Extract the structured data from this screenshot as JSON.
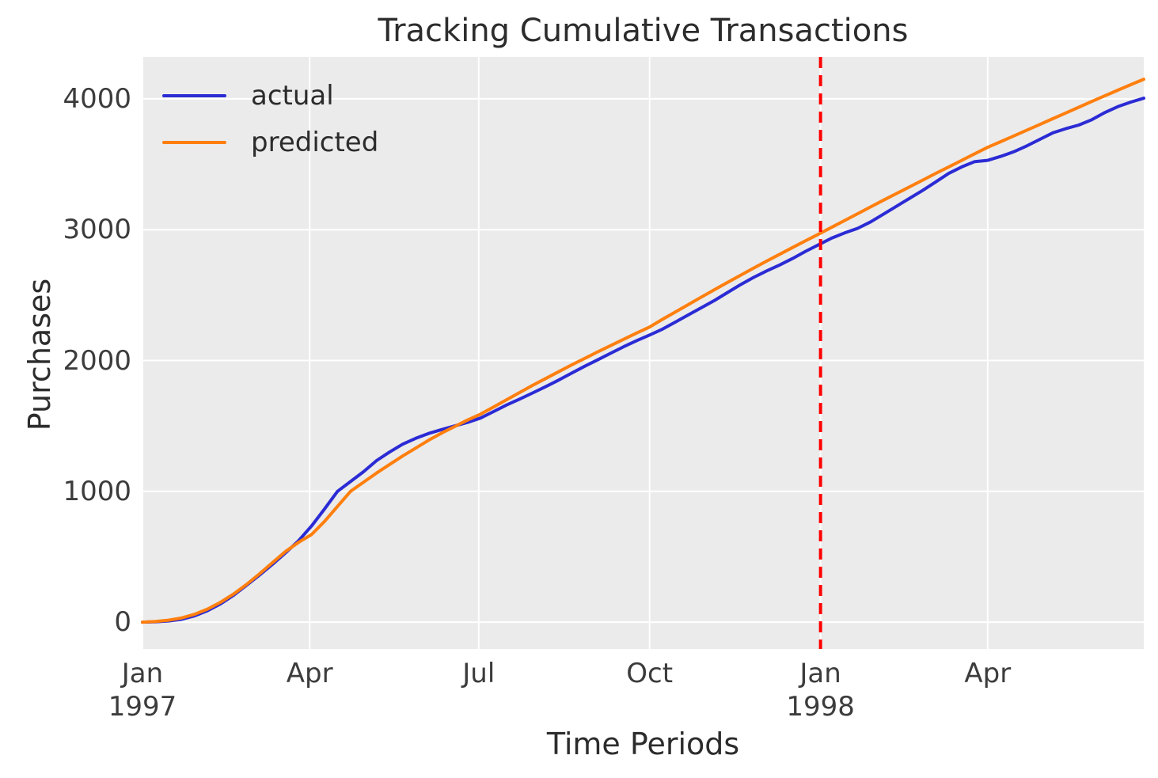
{
  "title": "Tracking Cumulative Transactions",
  "axes": {
    "xlabel": "Time Periods",
    "ylabel": "Purchases"
  },
  "legend": {
    "position": "upper left",
    "items": [
      {
        "label": "actual",
        "color": "#2b2bd5"
      },
      {
        "label": "predicted",
        "color": "#ff7f0e"
      }
    ]
  },
  "colors": {
    "figure_bg": "#ffffff",
    "plot_bg": "#ebebeb",
    "grid": "#ffffff",
    "actual": "#2b2bd5",
    "predicted": "#ff7f0e",
    "vline": "#ff0000",
    "heading_text": "#2c2c2c",
    "tick_text": "#3c3c3c"
  },
  "chart_data": {
    "type": "line",
    "title": "Tracking Cumulative Transactions",
    "xlabel": "Time Periods",
    "ylabel": "Purchases",
    "x_unit": "weeks since 1997-01-01 (weekly cumulative totals)",
    "x_week_range": [
      0,
      77
    ],
    "ylim": [
      -205,
      4320
    ],
    "grid": true,
    "legend_position": "upper left",
    "yticks": [
      {
        "label": "0",
        "value": 0
      },
      {
        "label": "1000",
        "value": 1000
      },
      {
        "label": "2000",
        "value": 2000
      },
      {
        "label": "3000",
        "value": 3000
      },
      {
        "label": "4000",
        "value": 4000
      }
    ],
    "xticks": [
      {
        "label": "Jan",
        "sublabel": "1997",
        "week": 0
      },
      {
        "label": "Apr",
        "sublabel": "",
        "week": 12.857
      },
      {
        "label": "Jul",
        "sublabel": "",
        "week": 25.857
      },
      {
        "label": "Oct",
        "sublabel": "",
        "week": 39
      },
      {
        "label": "Jan",
        "sublabel": "1998",
        "week": 52.143
      },
      {
        "label": "Apr",
        "sublabel": "",
        "week": 65
      }
    ],
    "vline": {
      "week": 52.143,
      "at_tick": "Jan 1998",
      "color": "#ff0000",
      "style": "dashed"
    },
    "series": [
      {
        "name": "actual",
        "color": "#2b2bd5",
        "values": [
          0,
          3,
          9,
          22,
          48,
          88,
          140,
          205,
          282,
          360,
          442,
          530,
          622,
          735,
          865,
          1000,
          1075,
          1150,
          1235,
          1300,
          1360,
          1405,
          1442,
          1472,
          1500,
          1527,
          1560,
          1610,
          1660,
          1705,
          1752,
          1800,
          1850,
          1903,
          1956,
          2005,
          2055,
          2105,
          2152,
          2195,
          2240,
          2295,
          2350,
          2405,
          2460,
          2520,
          2580,
          2635,
          2685,
          2730,
          2780,
          2835,
          2885,
          2935,
          2975,
          3010,
          3060,
          3120,
          3180,
          3240,
          3300,
          3365,
          3430,
          3480,
          3520,
          3530,
          3560,
          3595,
          3640,
          3690,
          3740,
          3772,
          3800,
          3840,
          3895,
          3940,
          3975,
          4005
        ]
      },
      {
        "name": "predicted",
        "color": "#ff7f0e",
        "values": [
          0,
          5,
          15,
          32,
          60,
          100,
          152,
          215,
          288,
          370,
          455,
          540,
          610,
          670,
          770,
          885,
          1000,
          1070,
          1140,
          1205,
          1270,
          1330,
          1390,
          1445,
          1495,
          1545,
          1590,
          1645,
          1700,
          1755,
          1810,
          1862,
          1914,
          1966,
          2016,
          2066,
          2114,
          2162,
          2210,
          2256,
          2315,
          2372,
          2429,
          2486,
          2542,
          2598,
          2652,
          2706,
          2760,
          2812,
          2864,
          2916,
          2966,
          3018,
          3070,
          3122,
          3174,
          3226,
          3277,
          3328,
          3379,
          3430,
          3480,
          3530,
          3580,
          3630,
          3673,
          3716,
          3760,
          3804,
          3848,
          3892,
          3936,
          3980,
          4023,
          4066,
          4108,
          4150
        ]
      }
    ]
  }
}
